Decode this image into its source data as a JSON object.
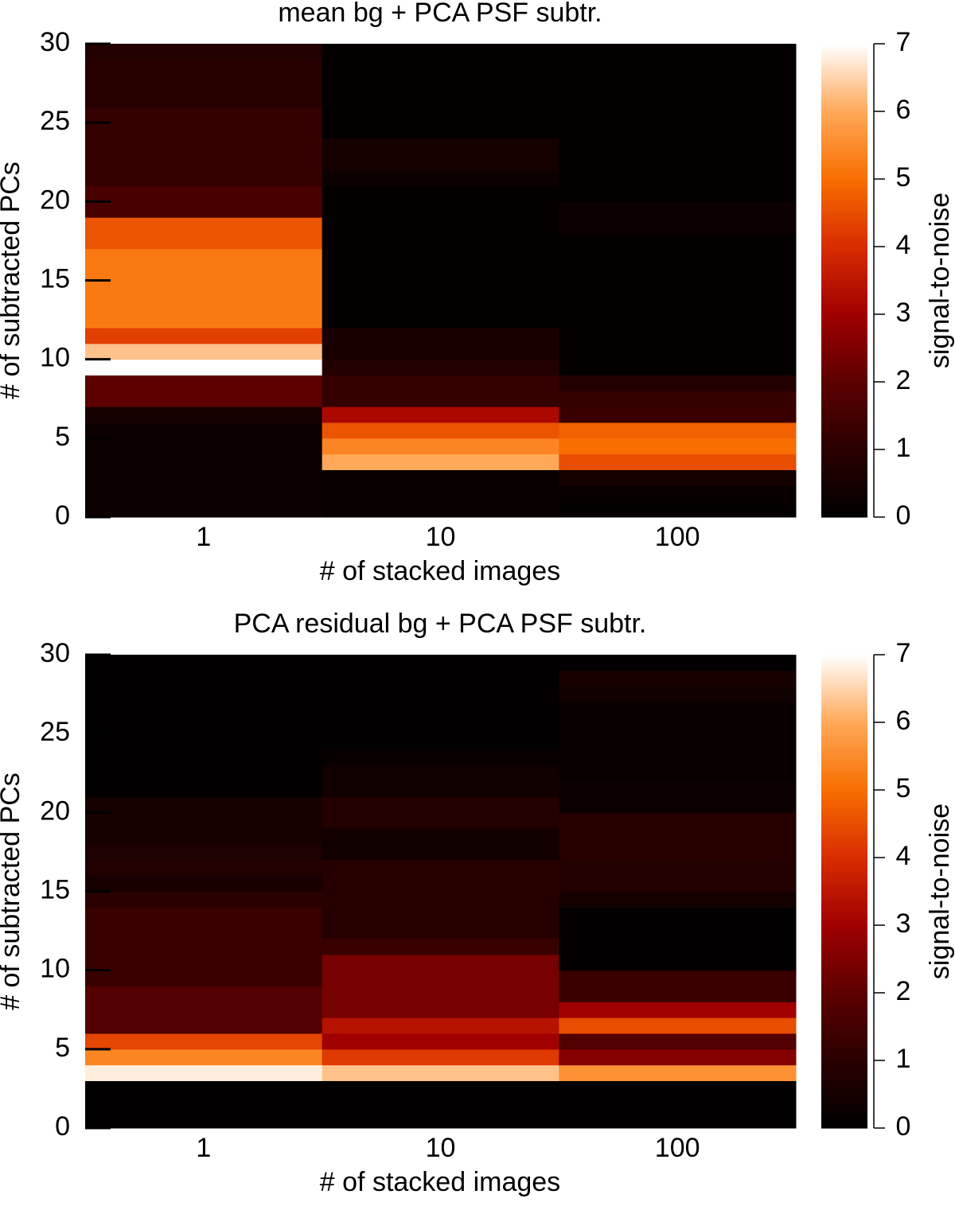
{
  "chart_data": [
    {
      "type": "heatmap",
      "title": "mean bg + PCA PSF subtr.",
      "x_label": "# of stacked images",
      "y_label": "# of subtracted PCs",
      "colorbar_label": "signal-to-noise",
      "categories": [
        "1",
        "10",
        "100"
      ],
      "ylim": [
        0,
        30
      ],
      "yticks": [
        0,
        5,
        10,
        15,
        20,
        25,
        30
      ],
      "zlim": [
        0,
        7
      ],
      "zticks": [
        0,
        1,
        2,
        3,
        4,
        5,
        6,
        7
      ],
      "colormap": [
        "#000000",
        "#2a0000",
        "#5c0000",
        "#a00000",
        "#d82c00",
        "#f86e00",
        "#ffa858",
        "#ffffff"
      ],
      "values": [
        [
          0.3,
          0.2,
          0.1
        ],
        [
          0.3,
          0.2,
          0.2
        ],
        [
          0.3,
          0.2,
          0.5
        ],
        [
          0.3,
          6.0,
          4.5
        ],
        [
          0.3,
          5.4,
          5.0
        ],
        [
          0.3,
          4.6,
          4.8
        ],
        [
          0.5,
          3.2,
          1.3
        ],
        [
          2.0,
          1.2,
          1.2
        ],
        [
          2.0,
          1.2,
          0.8
        ],
        [
          7.0,
          0.8,
          0.1
        ],
        [
          6.3,
          0.6,
          0.1
        ],
        [
          4.3,
          0.6,
          0.1
        ],
        [
          5.2,
          0.1,
          0.1
        ],
        [
          5.2,
          0.1,
          0.1
        ],
        [
          5.2,
          0.1,
          0.1
        ],
        [
          5.2,
          0.1,
          0.1
        ],
        [
          5.2,
          0.1,
          0.1
        ],
        [
          4.6,
          0.1,
          0.1
        ],
        [
          4.6,
          0.1,
          0.3
        ],
        [
          1.6,
          0.1,
          0.3
        ],
        [
          1.6,
          0.1,
          0.1
        ],
        [
          1.2,
          0.3,
          0.1
        ],
        [
          1.2,
          0.5,
          0.1
        ],
        [
          1.2,
          0.5,
          0.1
        ],
        [
          1.2,
          0.1,
          0.1
        ],
        [
          1.2,
          0.1,
          0.1
        ],
        [
          0.9,
          0.1,
          0.1
        ],
        [
          0.9,
          0.1,
          0.1
        ],
        [
          0.9,
          0.1,
          0.1
        ],
        [
          0.8,
          0.1,
          0.1
        ]
      ]
    },
    {
      "type": "heatmap",
      "title": "PCA residual bg + PCA PSF subtr.",
      "x_label": "# of stacked images",
      "y_label": "# of subtracted PCs",
      "colorbar_label": "signal-to-noise",
      "categories": [
        "1",
        "10",
        "100"
      ],
      "ylim": [
        0,
        30
      ],
      "yticks": [
        0,
        5,
        10,
        15,
        20,
        25,
        30
      ],
      "zlim": [
        0,
        7
      ],
      "zticks": [
        0,
        1,
        2,
        3,
        4,
        5,
        6,
        7
      ],
      "colormap": [
        "#000000",
        "#2a0000",
        "#5c0000",
        "#a00000",
        "#d82c00",
        "#f86e00",
        "#ffa858",
        "#ffffff"
      ],
      "values": [
        [
          0.05,
          0.05,
          0.05
        ],
        [
          0.05,
          0.05,
          0.05
        ],
        [
          0.05,
          0.05,
          0.05
        ],
        [
          6.8,
          6.3,
          5.6
        ],
        [
          5.4,
          4.2,
          2.6
        ],
        [
          4.4,
          3.0,
          1.8
        ],
        [
          1.8,
          3.4,
          4.5
        ],
        [
          1.8,
          2.4,
          3.0
        ],
        [
          1.8,
          2.4,
          1.3
        ],
        [
          1.3,
          2.4,
          1.3
        ],
        [
          1.3,
          2.4,
          0.05
        ],
        [
          1.3,
          1.3,
          0.05
        ],
        [
          1.3,
          0.9,
          0.05
        ],
        [
          1.3,
          0.9,
          0.05
        ],
        [
          1.0,
          0.9,
          0.5
        ],
        [
          0.6,
          0.9,
          0.8
        ],
        [
          0.8,
          0.9,
          0.8
        ],
        [
          0.7,
          0.4,
          0.9
        ],
        [
          0.5,
          0.4,
          0.9
        ],
        [
          0.5,
          0.8,
          0.9
        ],
        [
          0.5,
          0.8,
          0.3
        ],
        [
          0.05,
          0.4,
          0.3
        ],
        [
          0.05,
          0.4,
          0.2
        ],
        [
          0.05,
          0.2,
          0.2
        ],
        [
          0.05,
          0.05,
          0.2
        ],
        [
          0.05,
          0.05,
          0.2
        ],
        [
          0.05,
          0.05,
          0.2
        ],
        [
          0.05,
          0.05,
          0.4
        ],
        [
          0.05,
          0.05,
          0.6
        ],
        [
          0.05,
          0.05,
          0.05
        ]
      ]
    }
  ]
}
